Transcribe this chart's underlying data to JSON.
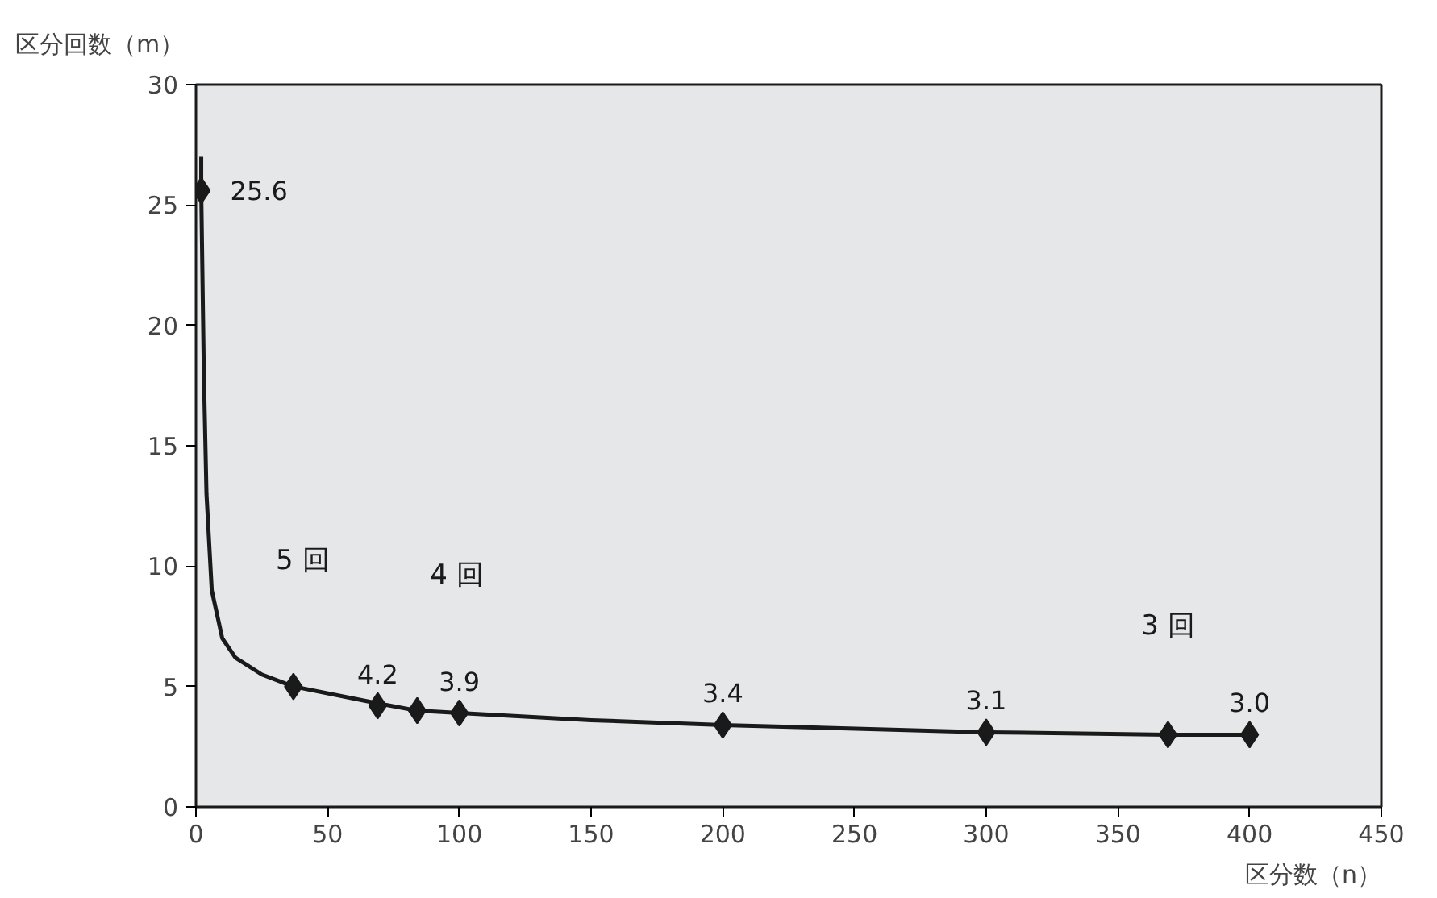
{
  "chart_data": {
    "type": "scatter",
    "xlabel": "区分数（n）",
    "ylabel": "区分回数（m）",
    "xlim": [
      0,
      450
    ],
    "xticks": [
      0,
      50,
      100,
      150,
      200,
      250,
      300,
      350,
      400,
      450
    ],
    "ylim": [
      0,
      30
    ],
    "yticks": [
      0,
      5,
      10,
      15,
      20,
      25,
      30
    ],
    "grid": false,
    "series": [
      {
        "type": "line",
        "color": "#1a1a1a",
        "marker": "none",
        "x": [
          2,
          2,
          3,
          4,
          6,
          10,
          15,
          25,
          37,
          69,
          84,
          100,
          150,
          200,
          300,
          369,
          400
        ],
        "values": [
          27,
          25.6,
          18,
          13,
          9,
          7,
          6.2,
          5.5,
          5.0,
          4.3,
          4.0,
          3.9,
          3.6,
          3.4,
          3.1,
          3.0,
          3.0
        ]
      },
      {
        "color": "#1a1a1a",
        "marker": "diamond",
        "x": [
          2,
          37,
          69,
          84,
          100,
          200,
          300,
          369,
          400
        ],
        "values": [
          25.6,
          5.0,
          4.2,
          4.0,
          3.9,
          3.4,
          3.1,
          3.0,
          3.0
        ],
        "value_labels": [
          "25.6",
          null,
          "4.2",
          null,
          "3.9",
          "3.4",
          "3.1",
          null,
          "3.0"
        ]
      }
    ],
    "annotations": [
      "5 回",
      "4 回",
      "3 回"
    ]
  }
}
